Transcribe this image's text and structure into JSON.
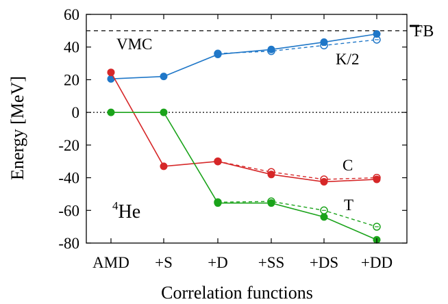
{
  "chart_data": {
    "type": "line",
    "xlabel": "Correlation functions",
    "ylabel": "Energy [MeV]",
    "ylim": [
      -80,
      60
    ],
    "yticks": [
      -80,
      -60,
      -40,
      -20,
      0,
      20,
      40,
      60
    ],
    "ytick_labels": [
      "-80",
      "-60",
      "-40",
      "-20",
      "0",
      "20",
      "40",
      "60"
    ],
    "categories": [
      "AMD",
      "+S",
      "+D",
      "+SS",
      "+DS",
      "+DD"
    ],
    "grid": false,
    "zero_line": 0,
    "reference": {
      "label": "FB",
      "value": 50
    },
    "annotations": {
      "vmc": "VMC",
      "nucleus_mass": "4",
      "nucleus_symbol": "He"
    },
    "series": [
      {
        "name": "K/2",
        "color": "#1f77c8",
        "solid": [
          20.5,
          22,
          35.5,
          38.5,
          43,
          48
        ],
        "dashed": [
          null,
          null,
          36,
          37.5,
          41,
          44.5
        ]
      },
      {
        "name": "C",
        "color": "#d62728",
        "solid": [
          24.5,
          -33,
          -30,
          -38,
          -42.5,
          -41
        ],
        "dashed": [
          null,
          null,
          -30,
          -36.5,
          -41,
          -40
        ]
      },
      {
        "name": "T",
        "color": "#1aa31a",
        "solid": [
          0,
          0,
          -55.5,
          -55.5,
          -64,
          -78
        ],
        "dashed": [
          null,
          null,
          -55,
          -54.5,
          -60,
          -70
        ]
      }
    ]
  }
}
